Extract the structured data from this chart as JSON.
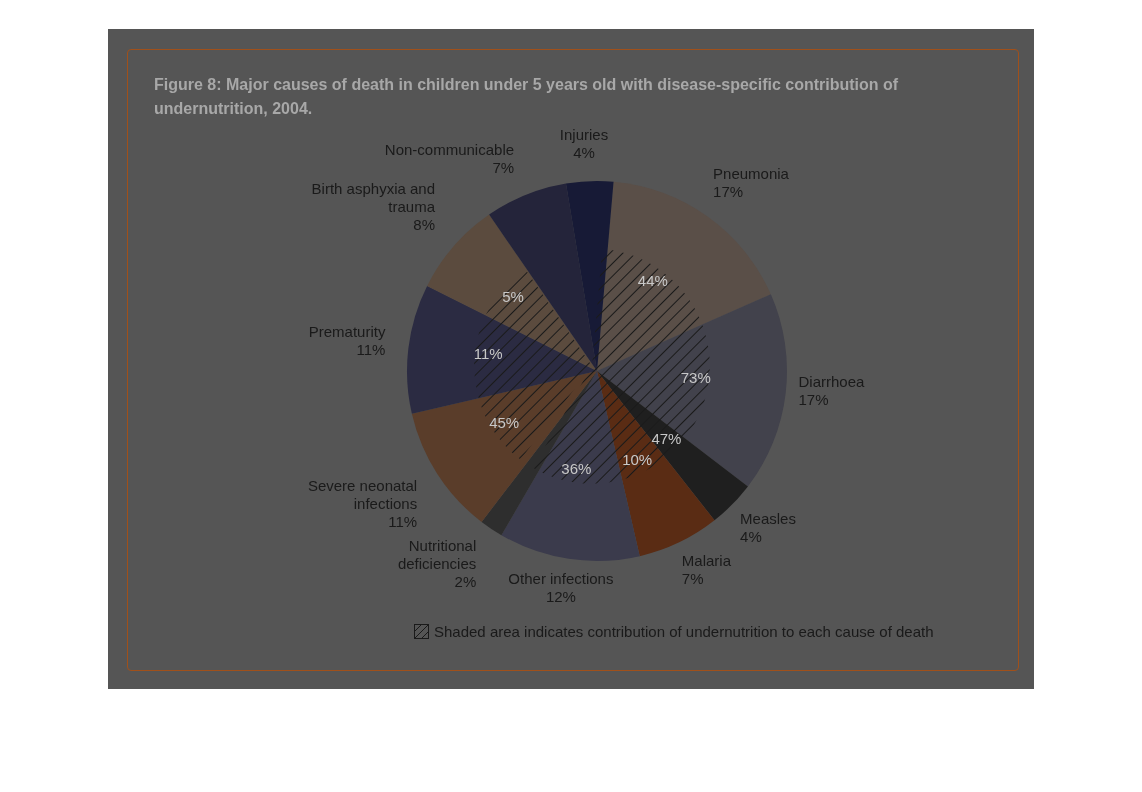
{
  "chart_data": {
    "type": "pie",
    "title": "Figure 8: Major causes of death in children under 5 years old with disease-specific contribution of undernutrition, 2004.",
    "categories": [
      "Pneumonia",
      "Diarrhoea",
      "Measles",
      "Malaria",
      "Other infections",
      "Nutritional deficiencies",
      "Severe neonatal infections",
      "Prematurity",
      "Birth asphyxia and trauma",
      "Non-communicable",
      "Injuries"
    ],
    "values": [
      17,
      17,
      4,
      7,
      12,
      2,
      11,
      11,
      8,
      7,
      4
    ],
    "colors": [
      "#5a4f48",
      "#42424c",
      "#1f1f1f",
      "#5a2c14",
      "#3b3b4c",
      "#2e2e2e",
      "#5a3d2a",
      "#2b2b42",
      "#5b4b3e",
      "#24243a",
      "#171a36"
    ],
    "value_labels": [
      "17%",
      "17%",
      "4%",
      "7%",
      "12%",
      "2%",
      "11%",
      "11%",
      "8%",
      "7%",
      "4%"
    ],
    "annotations": [
      {
        "text": "44%",
        "x": "Pneumonia"
      },
      {
        "text": "73%",
        "x": "Diarrhoea"
      },
      {
        "text": "47%",
        "x": "Measles"
      },
      {
        "text": "10%",
        "x": "Malaria"
      },
      {
        "text": "36%",
        "x": "Other infections"
      },
      {
        "text": "45%",
        "x": "Severe neonatal infections"
      },
      {
        "text": "11%",
        "x": "Prematurity"
      },
      {
        "text": "5%",
        "x": "Birth asphyxia and trauma"
      },
      "Shaded area indicates contribution of undernutrition to each cause of death"
    ]
  }
}
